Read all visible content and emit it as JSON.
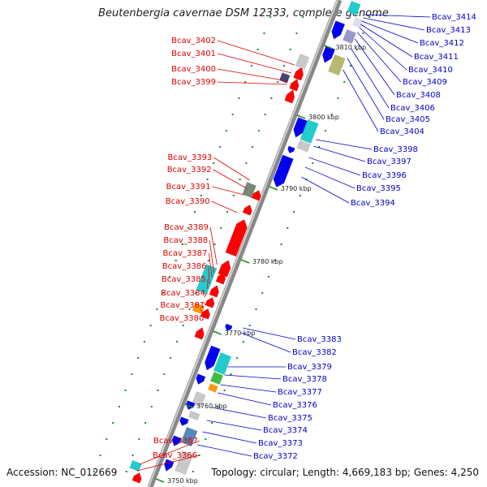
{
  "title": "Beutenbergia cavernae DSM 12333, complete genome",
  "footer": {
    "accession": "Accession: NC_012669",
    "summary": "Topology: circular; Length: 4,669,183 bp; Genes: 4,250"
  },
  "colors": {
    "left_label": "#dd0000",
    "right_label": "#0000cc",
    "forward_gene": "#ff0000",
    "reverse_gene": "#0000ee",
    "rna_cyan": "#22cccc",
    "pseudo_grey": "#c8c8c8",
    "olive": "#b8b870",
    "steel": "#5588bb",
    "orange": "#ff9900",
    "green": "#44bb44",
    "tick_green": "#228822",
    "backbone": "#888888"
  },
  "kbp_ticks": [
    {
      "label": "3810 kbp"
    },
    {
      "label": "3800 kbp"
    },
    {
      "label": "3790 kbp"
    },
    {
      "label": "3780 kbp"
    },
    {
      "label": "3770 kbp"
    },
    {
      "label": "3760 kbp"
    },
    {
      "label": "3750 kbp"
    }
  ],
  "left_genes": [
    "Bcav_3402",
    "Bcav_3401",
    "Bcav_3400",
    "Bcav_3399",
    "Bcav_3393",
    "Bcav_3392",
    "Bcav_3391",
    "Bcav_3390",
    "Bcav_3389",
    "Bcav_3388",
    "Bcav_3387",
    "Bcav_3386",
    "Bcav_3385",
    "Bcav_3384",
    "Bcav_3381",
    "Bcav_3380",
    "Bcav_3367",
    "Bcav_3366"
  ],
  "right_genes": [
    "Bcav_3414",
    "Bcav_3413",
    "Bcav_3412",
    "Bcav_3411",
    "Bcav_3410",
    "Bcav_3409",
    "Bcav_3408",
    "Bcav_3406",
    "Bcav_3405",
    "Bcav_3404",
    "Bcav_3398",
    "Bcav_3397",
    "Bcav_3396",
    "Bcav_3395",
    "Bcav_3394",
    "Bcav_3383",
    "Bcav_3382",
    "Bcav_3379",
    "Bcav_3378",
    "Bcav_3377",
    "Bcav_3376",
    "Bcav_3375",
    "Bcav_3374",
    "Bcav_3373",
    "Bcav_3372"
  ]
}
